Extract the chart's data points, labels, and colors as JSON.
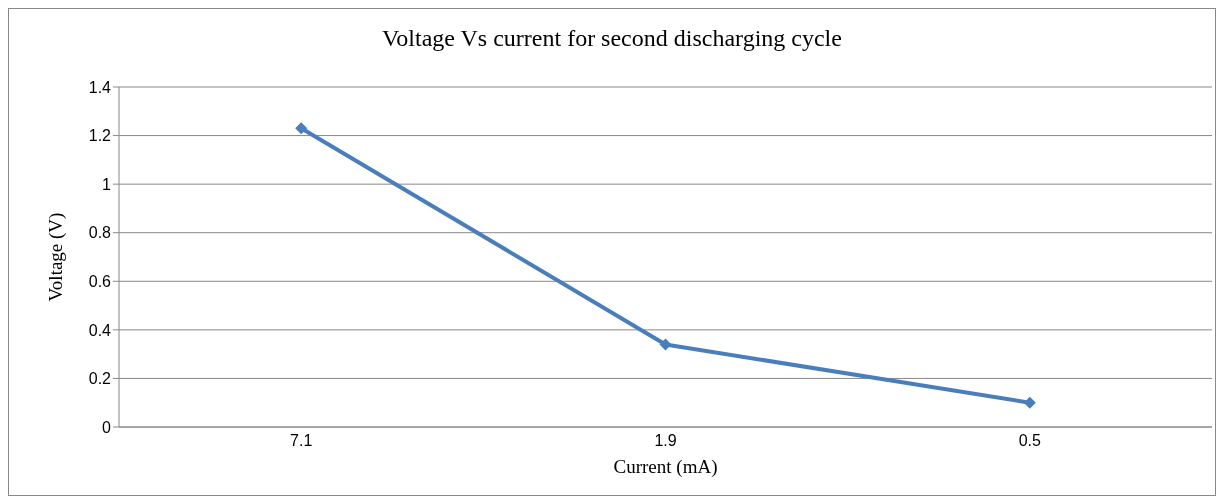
{
  "chart_data": {
    "type": "line",
    "title": "Voltage Vs current for second discharging cycle",
    "xlabel": "Current (mA)",
    "ylabel": "Voltage (V)",
    "categories": [
      "7.1",
      "1.9",
      "0.5"
    ],
    "series": [
      {
        "color": "#4a7ebb",
        "values": [
          1.23,
          0.34,
          0.1
        ]
      }
    ],
    "ylim": [
      0,
      1.4
    ],
    "yticks": [
      0,
      0.2,
      0.4,
      0.6,
      0.8,
      1,
      1.2,
      1.4
    ],
    "grid": "y",
    "marker": "diamond",
    "line_style": "solid"
  }
}
